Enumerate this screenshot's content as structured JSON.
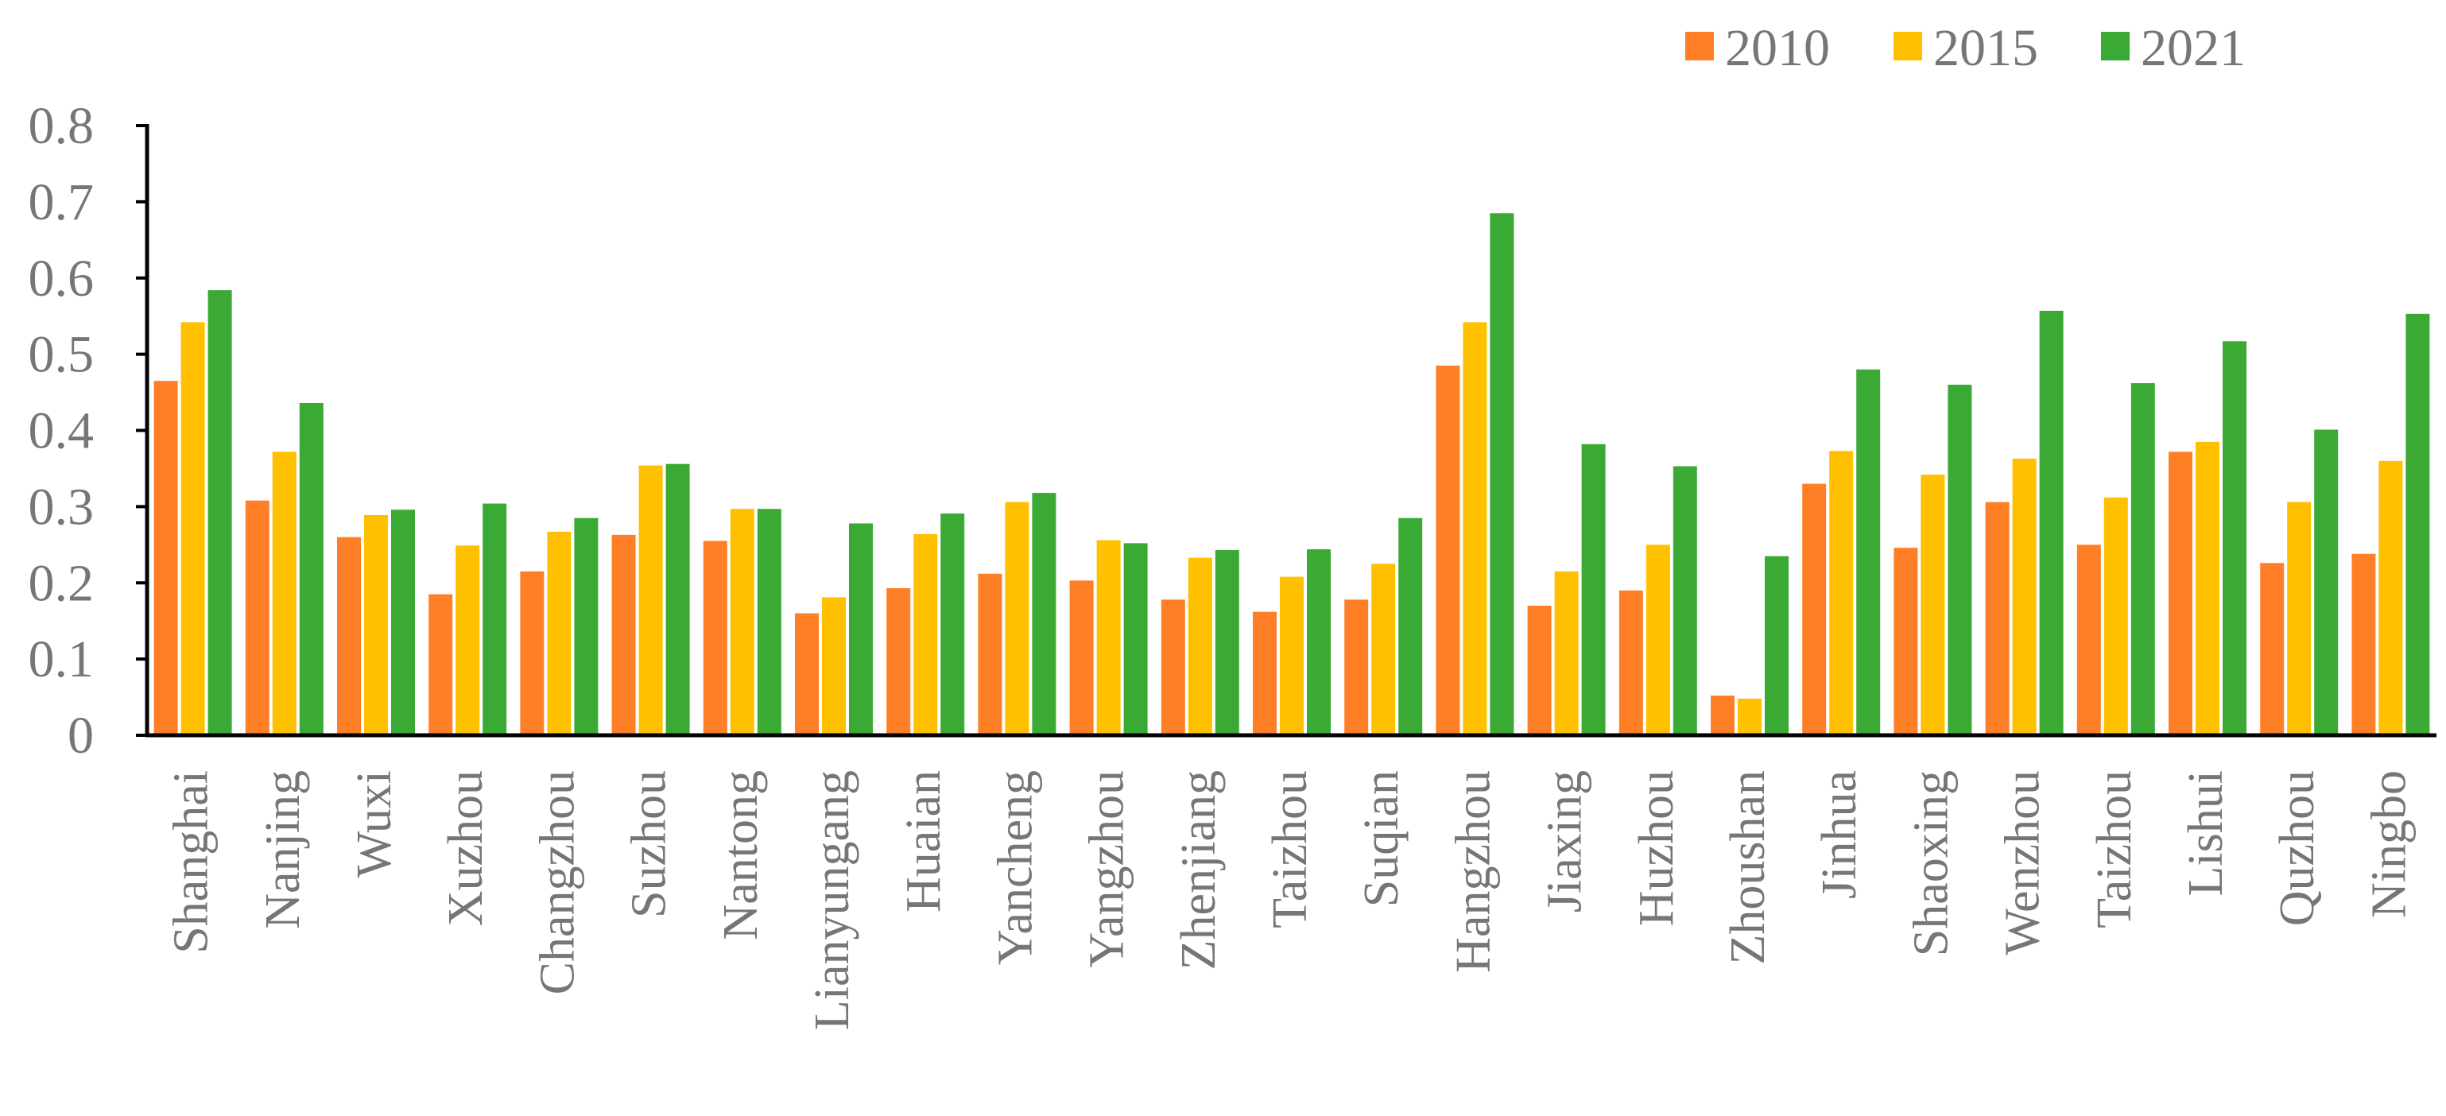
{
  "chart_data": {
    "type": "bar",
    "title": "",
    "xlabel": "",
    "ylabel": "",
    "ylim": [
      0,
      0.8
    ],
    "yticks": [
      "0",
      "0.1",
      "0.2",
      "0.3",
      "0.4",
      "0.5",
      "0.6",
      "0.7",
      "0.8"
    ],
    "grid": false,
    "legend_position": "top-right",
    "categories": [
      "Shanghai",
      "Nanjing",
      "Wuxi",
      "Xuzhou",
      "Changzhou",
      "Suzhou",
      "Nantong",
      "Lianyungang",
      "Huaian",
      "Yancheng",
      "Yangzhou",
      "Zhenjiang",
      "Taizhou",
      "Suqian",
      "Hangzhou",
      "Jiaxing",
      "Huzhou",
      "Zhoushan",
      "Jinhua",
      "Shaoxing",
      "Wenzhou",
      "Taizhou",
      "Lishui",
      "Quzhou",
      "Ningbo"
    ],
    "series": [
      {
        "name": "2010",
        "color": "#FF7F27",
        "values": [
          0.465,
          0.308,
          0.26,
          0.185,
          0.215,
          0.263,
          0.255,
          0.16,
          0.193,
          0.212,
          0.203,
          0.178,
          0.162,
          0.178,
          0.485,
          0.17,
          0.19,
          0.052,
          0.33,
          0.246,
          0.306,
          0.25,
          0.372,
          0.226,
          0.238
        ]
      },
      {
        "name": "2015",
        "color": "#FFC000",
        "values": [
          0.542,
          0.372,
          0.289,
          0.249,
          0.267,
          0.354,
          0.297,
          0.181,
          0.264,
          0.306,
          0.256,
          0.233,
          0.208,
          0.225,
          0.542,
          0.215,
          0.25,
          0.048,
          0.373,
          0.342,
          0.363,
          0.312,
          0.385,
          0.306,
          0.36
        ]
      },
      {
        "name": "2021",
        "color": "#3AAA35",
        "values": [
          0.584,
          0.436,
          0.296,
          0.304,
          0.285,
          0.356,
          0.297,
          0.278,
          0.291,
          0.318,
          0.252,
          0.243,
          0.244,
          0.285,
          0.685,
          0.382,
          0.353,
          0.235,
          0.48,
          0.46,
          0.557,
          0.462,
          0.517,
          0.401,
          0.553
        ]
      }
    ]
  }
}
